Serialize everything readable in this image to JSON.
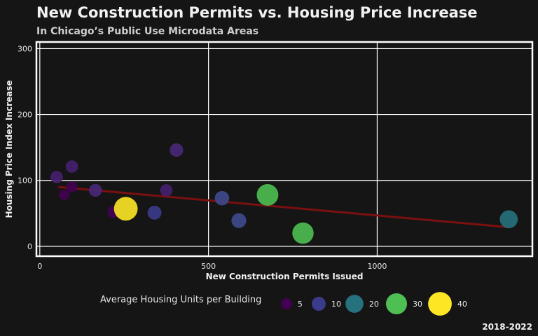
{
  "title": "New Construction Permits vs. Housing Price Increase",
  "subtitle": "In Chicago’s Public Use Microdata Areas",
  "caption": "2018-2022",
  "colors": {
    "background": "#151515",
    "grid": "#ffffff",
    "trend": "#7a1010"
  },
  "chart_data": {
    "type": "scatter",
    "xlabel": "New Construction Permits Issued",
    "ylabel": "Housing Price Index Increase",
    "xlim": [
      -10,
      1460
    ],
    "ylim": [
      -15,
      310
    ],
    "xticks": [
      0,
      500,
      1000
    ],
    "yticks": [
      0,
      100,
      200,
      300
    ],
    "grid": true,
    "legend_position": "bottom",
    "size_legend": {
      "title": "Average Housing Units per Building",
      "entries": [
        {
          "label": "5",
          "value": 5,
          "color": "#440154"
        },
        {
          "label": "10",
          "value": 10,
          "color": "#3b3b8c"
        },
        {
          "label": "20",
          "value": 20,
          "color": "#26717e"
        },
        {
          "label": "30",
          "value": 30,
          "color": "#4ebf52"
        },
        {
          "label": "40",
          "value": 40,
          "color": "#fde725"
        }
      ]
    },
    "points": [
      {
        "x": 50,
        "y": 105,
        "size": 7,
        "color": "#46206f"
      },
      {
        "x": 95,
        "y": 121,
        "size": 7,
        "color": "#46206f"
      },
      {
        "x": 95,
        "y": 90,
        "size": 5,
        "color": "#440154"
      },
      {
        "x": 72,
        "y": 78,
        "size": 4,
        "color": "#440154"
      },
      {
        "x": 165,
        "y": 85,
        "size": 8,
        "color": "#482878"
      },
      {
        "x": 218,
        "y": 52,
        "size": 6,
        "color": "#440154"
      },
      {
        "x": 255,
        "y": 57,
        "size": 40,
        "color": "#fde725"
      },
      {
        "x": 340,
        "y": 51,
        "size": 10,
        "color": "#3b3b8c"
      },
      {
        "x": 375,
        "y": 85,
        "size": 7,
        "color": "#46206f"
      },
      {
        "x": 405,
        "y": 146,
        "size": 9,
        "color": "#482878"
      },
      {
        "x": 540,
        "y": 73,
        "size": 11,
        "color": "#3e4a8e"
      },
      {
        "x": 590,
        "y": 39,
        "size": 12,
        "color": "#3e4a8e"
      },
      {
        "x": 675,
        "y": 78,
        "size": 32,
        "color": "#4ebf52"
      },
      {
        "x": 780,
        "y": 20,
        "size": 31,
        "color": "#4ebf52"
      },
      {
        "x": 1390,
        "y": 41,
        "size": 20,
        "color": "#26717e"
      }
    ],
    "trend_line": {
      "x": [
        55,
        1390
      ],
      "y": [
        90,
        29
      ]
    }
  }
}
